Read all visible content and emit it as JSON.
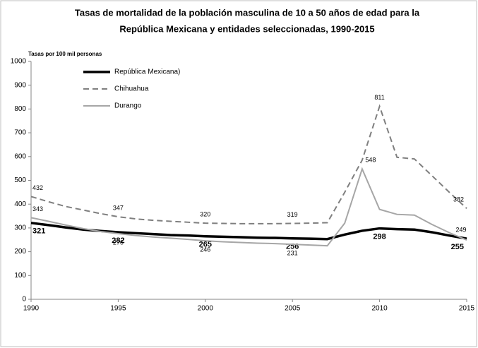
{
  "chart_data": {
    "type": "line",
    "title": [
      "Tasas de mortalidad de la población masculina  de 10 a 50 años de edad para la",
      "República Mexicana y entidades seleccionadas, 1990-2015"
    ],
    "y_label": "Tasas por 100 mil personas",
    "x": [
      1990,
      1991,
      1992,
      1993,
      1994,
      1995,
      1996,
      1997,
      1998,
      1999,
      2000,
      2001,
      2002,
      2003,
      2004,
      2005,
      2006,
      2007,
      2008,
      2009,
      2010,
      2011,
      2012,
      2013,
      2014,
      2015
    ],
    "xlim": [
      1990,
      2015
    ],
    "xticks": [
      1990,
      1995,
      2000,
      2005,
      2010,
      2015
    ],
    "ylim": [
      0,
      1000
    ],
    "yticks": [
      0,
      100,
      200,
      300,
      400,
      500,
      600,
      700,
      800,
      900,
      1000
    ],
    "grid": false,
    "legend": "upper left",
    "series": [
      {
        "name": "República Mexicana)",
        "color": "#000000",
        "dash": "solid",
        "width": 3.5,
        "values": [
          321,
          312,
          302,
          293,
          287,
          282,
          278,
          274,
          270,
          268,
          265,
          263,
          261,
          259,
          258,
          256,
          255,
          253,
          272,
          288,
          298,
          295,
          293,
          282,
          268,
          255
        ],
        "value_labels": [
          "321",
          null,
          null,
          null,
          null,
          "282",
          null,
          null,
          null,
          null,
          "265",
          null,
          null,
          null,
          null,
          "256",
          null,
          null,
          null,
          null,
          "298",
          null,
          null,
          null,
          null,
          "255"
        ]
      },
      {
        "name": "Chihuahua",
        "color": "#7f7f7f",
        "dash": "dashed",
        "width": 2,
        "values": [
          432,
          410,
          390,
          375,
          360,
          347,
          338,
          332,
          328,
          324,
          320,
          319,
          318,
          318,
          318,
          319,
          320,
          322,
          450,
          585,
          811,
          597,
          590,
          520,
          450,
          382
        ],
        "value_labels": [
          "432",
          null,
          null,
          null,
          null,
          "347",
          null,
          null,
          null,
          null,
          "320",
          null,
          null,
          null,
          null,
          "319",
          null,
          null,
          null,
          null,
          "811",
          null,
          null,
          null,
          null,
          "382"
        ]
      },
      {
        "name": "Durango",
        "color": "#a6a6a6",
        "dash": "solid",
        "width": 2,
        "values": [
          343,
          328,
          312,
          297,
          285,
          276,
          268,
          262,
          257,
          252,
          246,
          242,
          239,
          236,
          234,
          231,
          228,
          225,
          320,
          548,
          378,
          357,
          354,
          315,
          280,
          249
        ],
        "value_labels": [
          "343",
          null,
          null,
          null,
          null,
          "276",
          null,
          null,
          null,
          null,
          "246",
          null,
          null,
          null,
          null,
          "231",
          null,
          null,
          null,
          "548",
          null,
          null,
          null,
          null,
          null,
          "249"
        ]
      }
    ]
  }
}
